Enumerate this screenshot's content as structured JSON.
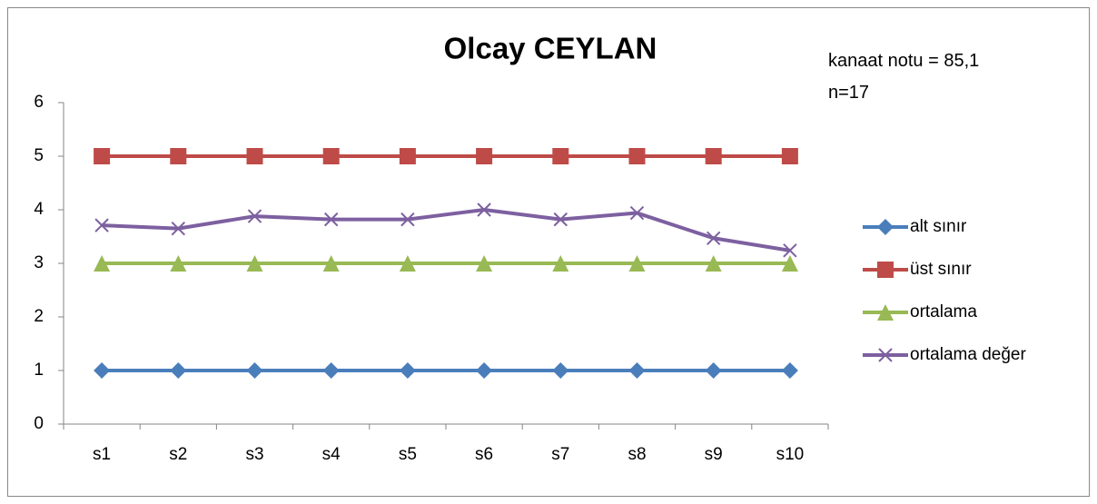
{
  "chart_data": {
    "type": "line",
    "title": "Olcay CEYLAN",
    "annotations": [
      "kanaat notu = 85,1",
      "n=17"
    ],
    "categories": [
      "s1",
      "s2",
      "s3",
      "s4",
      "s5",
      "s6",
      "s7",
      "s8",
      "s9",
      "s10"
    ],
    "series": [
      {
        "name": "alt sınır",
        "color": "#4a7ebb",
        "marker": "diamond",
        "values": [
          1,
          1,
          1,
          1,
          1,
          1,
          1,
          1,
          1,
          1
        ]
      },
      {
        "name": "üst sınır",
        "color": "#be4b48",
        "marker": "square",
        "values": [
          5,
          5,
          5,
          5,
          5,
          5,
          5,
          5,
          5,
          5
        ]
      },
      {
        "name": "ortalama",
        "color": "#98b954",
        "marker": "triangle",
        "values": [
          3,
          3,
          3,
          3,
          3,
          3,
          3,
          3,
          3,
          3
        ]
      },
      {
        "name": "ortalama değer",
        "color": "#7d60a0",
        "marker": "x",
        "values": [
          3.71,
          3.65,
          3.88,
          3.82,
          3.82,
          4,
          3.82,
          3.94,
          3.47,
          3.24
        ]
      }
    ],
    "ylim": [
      0,
      6
    ],
    "yticks": [
      0,
      1,
      2,
      3,
      4,
      5,
      6
    ],
    "grid": false,
    "legend": "right"
  }
}
